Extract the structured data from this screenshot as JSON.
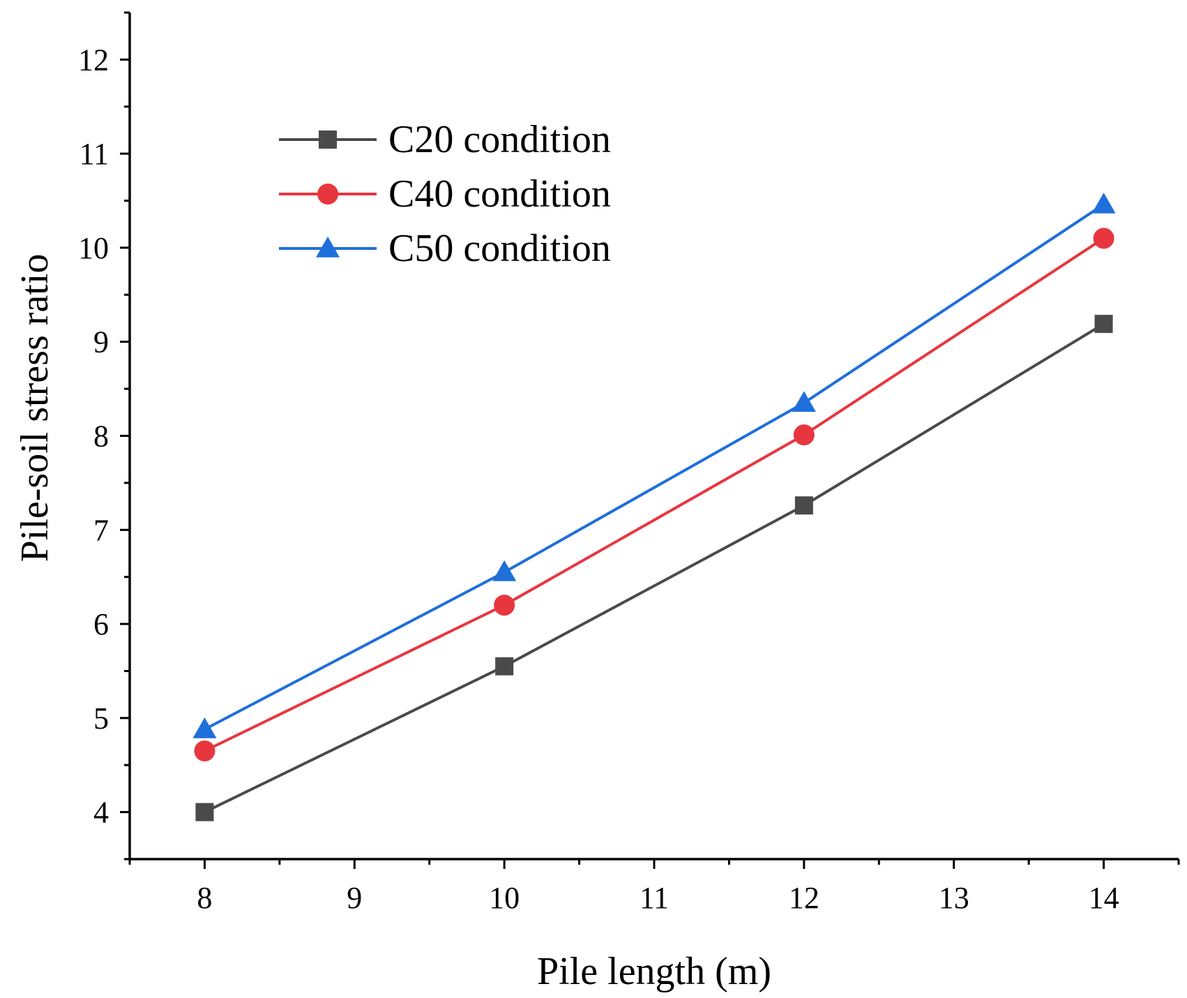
{
  "chart_data": {
    "type": "line",
    "title": "",
    "xlabel": "Pile length (m)",
    "ylabel": "Pile-soil stress ratio",
    "xlim": [
      7.5,
      14.5
    ],
    "ylim": [
      3.5,
      12.5
    ],
    "xticks": [
      8,
      9,
      10,
      11,
      12,
      13,
      14
    ],
    "yticks": [
      4,
      5,
      6,
      7,
      8,
      9,
      10,
      11,
      12
    ],
    "x": [
      8,
      10,
      12,
      14
    ],
    "grid": false,
    "legend_position": "top-left",
    "series": [
      {
        "name": "C20 condition",
        "color": "#4a4a4a",
        "marker": "square",
        "values": [
          4.0,
          5.55,
          7.26,
          9.19
        ]
      },
      {
        "name": "C40 condition",
        "color": "#e8363f",
        "marker": "circle",
        "values": [
          4.65,
          6.2,
          8.01,
          10.1
        ]
      },
      {
        "name": "C50 condition",
        "color": "#1f6fdb",
        "marker": "triangle",
        "values": [
          4.88,
          6.55,
          8.35,
          10.46
        ]
      }
    ]
  }
}
